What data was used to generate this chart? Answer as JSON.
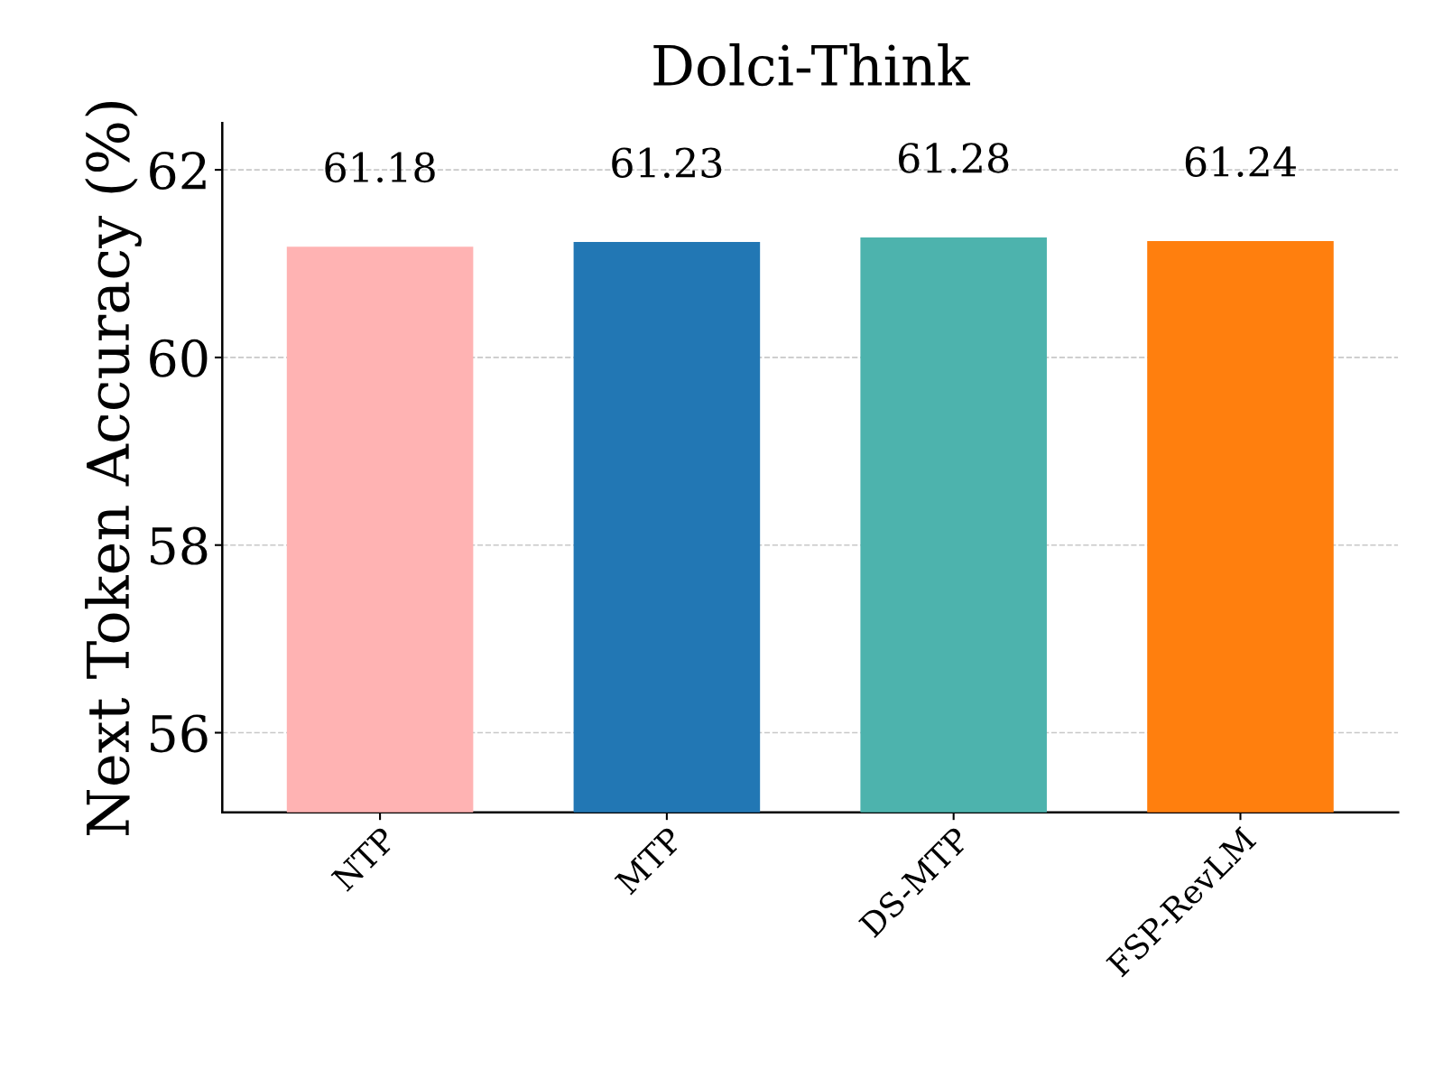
{
  "chart_data": {
    "type": "bar",
    "title": "Dolci-Think",
    "ylabel": "Next Token Accuracy (%)",
    "categories": [
      "NTP",
      "MTP",
      "DS-MTP",
      "FSP-RevLM"
    ],
    "values": [
      61.18,
      61.23,
      61.28,
      61.24
    ],
    "colors": [
      "#ffb3b3",
      "#2277b4",
      "#4db3ad",
      "#ff7f0e"
    ],
    "ylim": [
      55.15,
      62.5
    ],
    "yticks": [
      56,
      58,
      60,
      62
    ],
    "grid": "y",
    "data_labels": true
  }
}
